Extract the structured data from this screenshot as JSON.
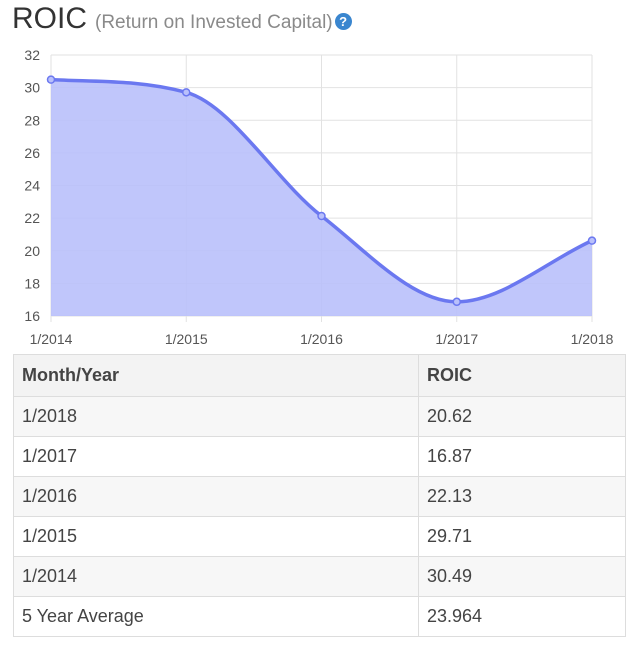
{
  "header": {
    "title": "ROIC",
    "subtitle": "(Return on Invested Capital)",
    "help_glyph": "?"
  },
  "colors": {
    "line": "#6b78f0",
    "fill": "#b9c0fb",
    "grid": "#e2e2e2",
    "help": "#3a86cf"
  },
  "chart_data": {
    "type": "area",
    "title": "ROIC",
    "x": [
      "1/2014",
      "1/2015",
      "1/2016",
      "1/2017",
      "1/2018"
    ],
    "series": [
      {
        "values": [
          30.49,
          29.71,
          22.13,
          16.87,
          20.62
        ]
      }
    ],
    "ylim": [
      16,
      32
    ],
    "yticks": [
      16,
      18,
      20,
      22,
      24,
      26,
      28,
      30,
      32
    ],
    "grid": true,
    "legend": "none"
  },
  "table": {
    "headers": [
      "Month/Year",
      "ROIC"
    ],
    "rows": [
      [
        "1/2018",
        "20.62"
      ],
      [
        "1/2017",
        "16.87"
      ],
      [
        "1/2016",
        "22.13"
      ],
      [
        "1/2015",
        "29.71"
      ],
      [
        "1/2014",
        "30.49"
      ],
      [
        "5 Year Average",
        "23.964"
      ]
    ]
  }
}
